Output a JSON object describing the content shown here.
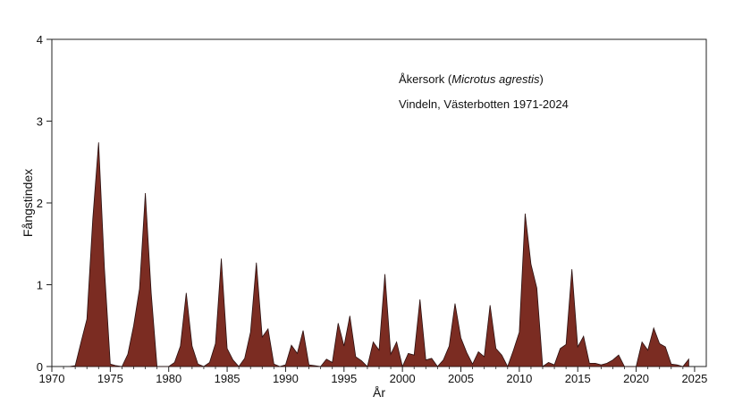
{
  "chart_data": {
    "type": "area",
    "title_name": "Åkersork",
    "title_species": "Microtus agrestis",
    "subtitle": "Vindeln, Västerbotten 1971-2024",
    "xlabel": "År",
    "ylabel": "Fångstindex",
    "xlim": [
      1970,
      2026
    ],
    "ylim": [
      0,
      4
    ],
    "xticks": [
      1970,
      1975,
      1980,
      1985,
      1990,
      1995,
      2000,
      2005,
      2010,
      2015,
      2020,
      2025
    ],
    "yticks": [
      0,
      1,
      2,
      3,
      4
    ],
    "fill_color": "#7b2c22",
    "series": [
      {
        "name": "Fångstindex",
        "x": [
          1971.5,
          1972.0,
          1972.5,
          1973.0,
          1973.5,
          1974.0,
          1974.5,
          1975.0,
          1975.5,
          1976.0,
          1976.5,
          1977.0,
          1977.5,
          1978.0,
          1978.5,
          1979.0,
          1979.5,
          1980.0,
          1980.5,
          1981.0,
          1981.5,
          1982.0,
          1982.5,
          1983.0,
          1983.5,
          1984.0,
          1984.5,
          1985.0,
          1985.5,
          1986.0,
          1986.5,
          1987.0,
          1987.5,
          1988.0,
          1988.5,
          1989.0,
          1989.5,
          1990.0,
          1990.5,
          1991.0,
          1991.5,
          1992.0,
          1992.5,
          1993.0,
          1993.5,
          1994.0,
          1994.5,
          1995.0,
          1995.5,
          1996.0,
          1996.5,
          1997.0,
          1997.5,
          1998.0,
          1998.5,
          1999.0,
          1999.5,
          2000.0,
          2000.5,
          2001.0,
          2001.5,
          2002.0,
          2002.5,
          2003.0,
          2003.5,
          2004.0,
          2004.5,
          2005.0,
          2005.5,
          2006.0,
          2006.5,
          2007.0,
          2007.5,
          2008.0,
          2008.5,
          2009.0,
          2009.5,
          2010.0,
          2010.5,
          2011.0,
          2011.5,
          2012.0,
          2012.5,
          2013.0,
          2013.5,
          2014.0,
          2014.5,
          2015.0,
          2015.5,
          2016.0,
          2016.5,
          2017.0,
          2017.5,
          2018.0,
          2018.5,
          2019.0,
          2019.5,
          2020.0,
          2020.5,
          2021.0,
          2021.5,
          2022.0,
          2022.5,
          2023.0,
          2023.5,
          2024.0,
          2024.5
        ],
        "y": [
          0.0,
          0.01,
          0.3,
          0.58,
          1.8,
          2.74,
          1.2,
          0.03,
          0.01,
          0.0,
          0.15,
          0.5,
          0.95,
          2.12,
          0.9,
          0.0,
          0.0,
          0.0,
          0.05,
          0.25,
          0.9,
          0.25,
          0.03,
          0.0,
          0.05,
          0.28,
          1.32,
          0.22,
          0.08,
          0.0,
          0.1,
          0.42,
          1.27,
          0.36,
          0.46,
          0.03,
          0.0,
          0.02,
          0.26,
          0.16,
          0.44,
          0.02,
          0.01,
          0.0,
          0.09,
          0.05,
          0.53,
          0.25,
          0.62,
          0.12,
          0.07,
          0.0,
          0.3,
          0.2,
          1.13,
          0.15,
          0.3,
          0.0,
          0.16,
          0.14,
          0.82,
          0.08,
          0.1,
          0.0,
          0.08,
          0.25,
          0.77,
          0.35,
          0.17,
          0.03,
          0.18,
          0.12,
          0.75,
          0.22,
          0.14,
          0.0,
          0.2,
          0.42,
          1.87,
          1.25,
          0.96,
          0.0,
          0.05,
          0.02,
          0.22,
          0.27,
          1.19,
          0.24,
          0.37,
          0.04,
          0.04,
          0.02,
          0.04,
          0.08,
          0.14,
          0.0,
          0.0,
          0.0,
          0.3,
          0.2,
          0.47,
          0.28,
          0.24,
          0.03,
          0.02,
          0.0,
          0.09
        ]
      }
    ]
  }
}
